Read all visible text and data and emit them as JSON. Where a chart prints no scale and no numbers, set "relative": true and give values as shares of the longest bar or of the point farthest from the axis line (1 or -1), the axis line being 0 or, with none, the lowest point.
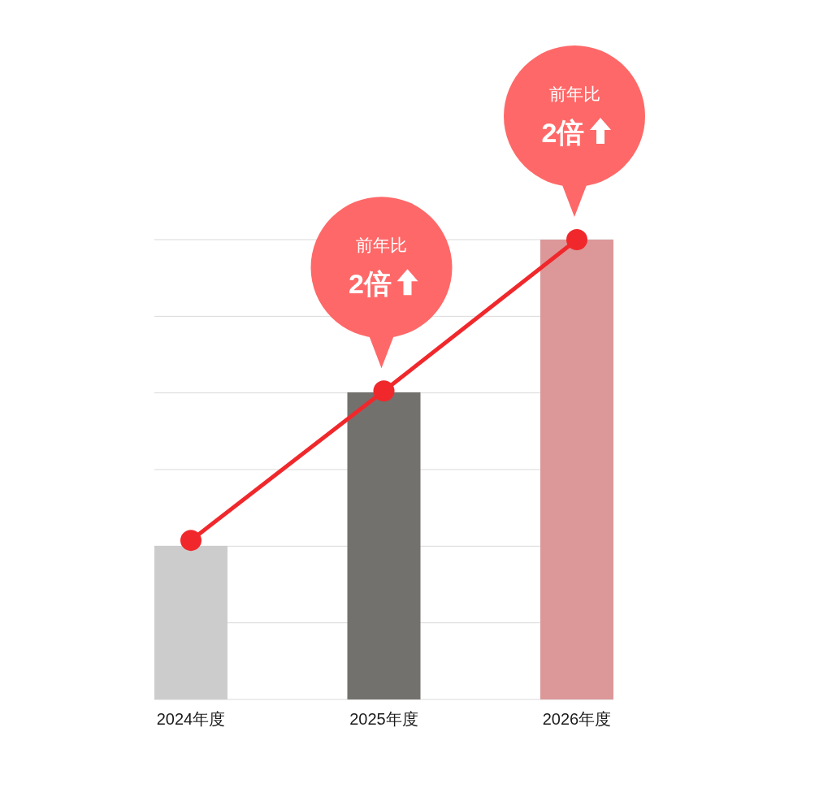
{
  "chart_data": {
    "type": "bar",
    "relative": true,
    "grid": "y",
    "categories": [
      "2024年度",
      "2025年度",
      "2026年度"
    ],
    "series": [
      {
        "colors": [
          "#cccccc",
          "#73716e",
          "#dc9899"
        ],
        "values": [
          0.334,
          0.668,
          1
        ]
      },
      {
        "type": "line",
        "color": "#f0282c",
        "marker": "circle",
        "values": [
          0.346,
          0.671,
          1
        ]
      }
    ],
    "annotations": [
      "前年比",
      "2倍",
      "前年比",
      "2倍"
    ]
  }
}
